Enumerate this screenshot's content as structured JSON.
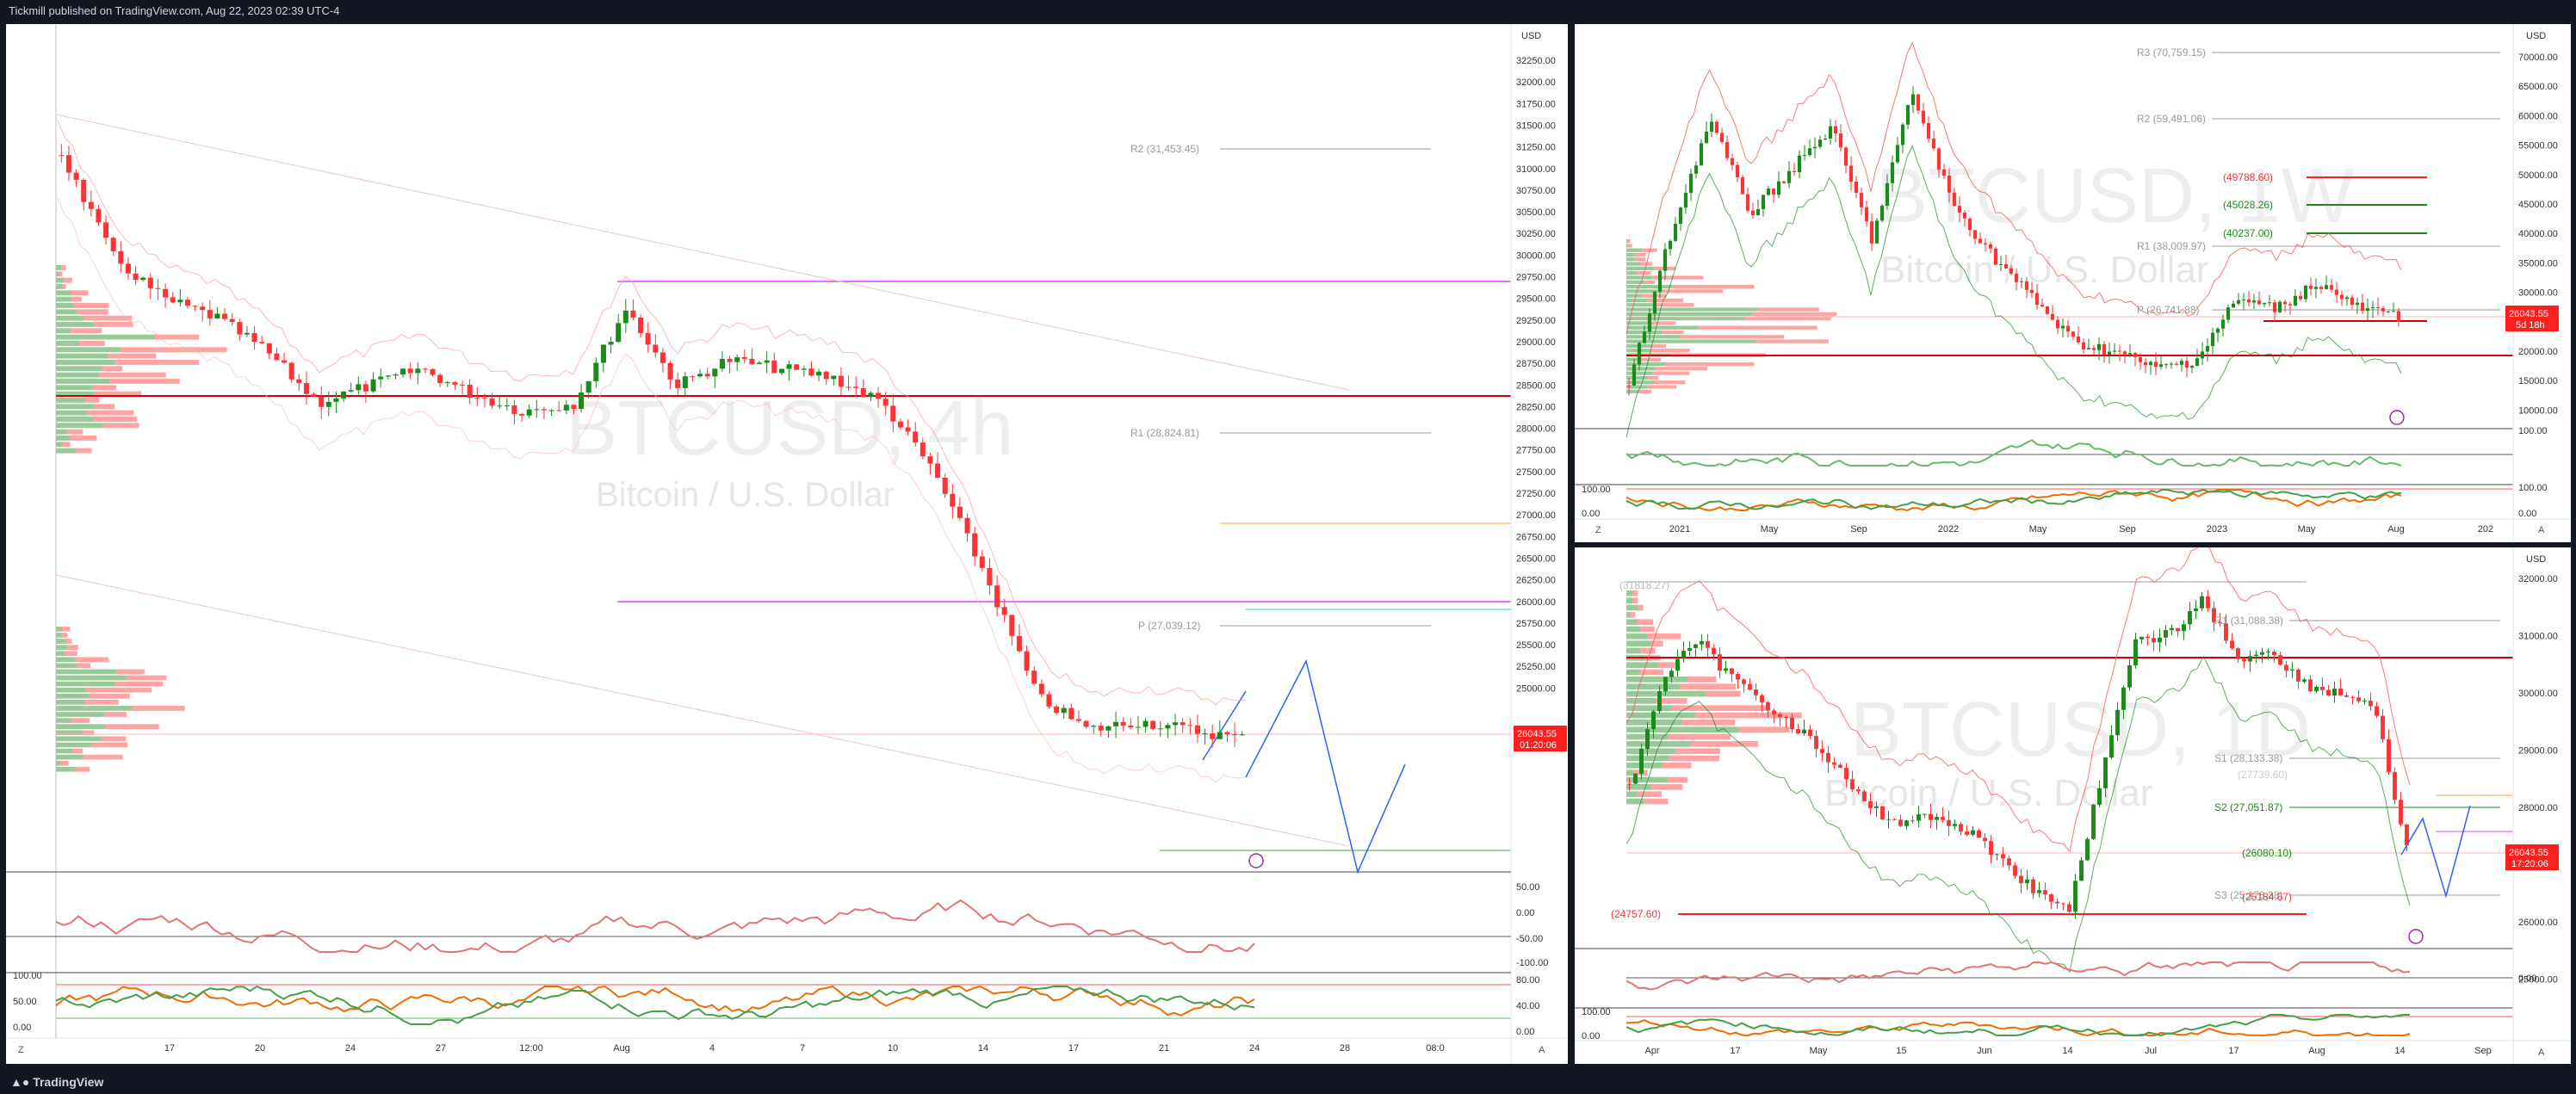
{
  "header": {
    "publisher_text": "Tickmill published on TradingView.com, Aug 22, 2023 02:39 UTC-4"
  },
  "footer": {
    "brand": "TradingView",
    "brand_icon": "tradingview-logo-icon"
  },
  "colors": {
    "up": "#1a8a1a",
    "down": "#ff3333",
    "price_tag": "#ff1f1f",
    "magenta": "#e040fb",
    "blue": "#2962ff"
  },
  "panels": {
    "left": {
      "watermark_symbol": "BTCUSD, 4h",
      "watermark_desc": "Bitcoin / U.S. Dollar",
      "currency": "USD",
      "price_tag": "26043.55",
      "countdown": "01:20:06",
      "price_axis": [
        "32250.00",
        "32000.00",
        "31750.00",
        "31500.00",
        "31250.00",
        "31000.00",
        "30750.00",
        "30500.00",
        "30250.00",
        "30000.00",
        "29750.00",
        "29500.00",
        "29250.00",
        "29000.00",
        "28750.00",
        "28500.00",
        "28250.00",
        "28000.00",
        "27750.00",
        "27500.00",
        "27250.00",
        "27000.00",
        "26750.00",
        "26500.00",
        "26250.00",
        "26000.00",
        "25750.00",
        "25500.00",
        "25250.00",
        "25000.00"
      ],
      "rsi_axis": [
        "50.00",
        "0.00",
        "-50.00",
        "-100.00"
      ],
      "stoch_axis": [
        "80.00",
        "40.00",
        "0.00"
      ],
      "stoch_left": [
        "100.00",
        "50.00",
        "0.00"
      ],
      "time_axis": [
        "17",
        "20",
        "24",
        "27",
        "12:00",
        "Aug",
        "4",
        "7",
        "10",
        "14",
        "17",
        "21",
        "24",
        "28",
        "08:0"
      ],
      "levels": {
        "r2": "R2 (31,453.45)",
        "r1": "R1 (28,824.81)",
        "p": "P (27,039.12)"
      },
      "z_button": "Z",
      "a_button": "A",
      "lightning_icon": "lightning-icon"
    },
    "weekly": {
      "watermark_symbol": "BTCUSD, 1W",
      "watermark_desc": "Bitcoin / U.S. Dollar",
      "currency": "USD",
      "price_tag": "26043.55",
      "countdown": "5d 18h",
      "price_axis": [
        "70000.00",
        "65000.00",
        "60000.00",
        "55000.00",
        "50000.00",
        "45000.00",
        "40000.00",
        "35000.00",
        "30000.00",
        "25000.00",
        "20000.00",
        "15000.00",
        "10000.00"
      ],
      "osc_axis": [
        "100.00",
        "100.00",
        "0.00"
      ],
      "osc_left": [
        "100.00",
        "0.00"
      ],
      "time_axis": [
        "2021",
        "May",
        "Sep",
        "2022",
        "May",
        "Sep",
        "2023",
        "May",
        "Aug",
        "202"
      ],
      "levels": {
        "r3": "R3 (70,759.15)",
        "r2": "R2 (59,491.06)",
        "l1": "(49788.60)",
        "l2": "(45028.26)",
        "l3": "(40237.00)",
        "r1": "R1 (38,009.97)",
        "p": "P (26,741.88)"
      },
      "z_button": "Z",
      "a_button": "A",
      "lightning_icon": "lightning-icon"
    },
    "daily": {
      "watermark_symbol": "BTCUSD, 1D",
      "watermark_desc": "Bitcoin / U.S. Dollar",
      "currency": "USD",
      "price_tag": "26043.55",
      "countdown": "17:20:06",
      "price_axis": [
        "32000.00",
        "31000.00",
        "30000.00",
        "29000.00",
        "28000.00",
        "27000.00",
        "26000.00",
        "25000.00"
      ],
      "osc_axis": [
        "0.00"
      ],
      "osc_left": [
        "100.00",
        "0.00"
      ],
      "time_axis": [
        "Apr",
        "17",
        "May",
        "15",
        "Jun",
        "14",
        "Jul",
        "17",
        "Aug",
        "14",
        "Sep"
      ],
      "levels": {
        "top": "(31818.27)",
        "r1": "R1 (31,088.38)",
        "s1": "S1 (28,133.38)",
        "s2": "S2 (27,051.87)",
        "mid": "(26080.10)",
        "s3": "S3 (25,178.38)",
        "low": "(24757.60)",
        "v1": "(27739.60)",
        "v2": "(25184.67)"
      },
      "z_button": "Z",
      "a_button": "A",
      "lightning_icon": "lightning-icon"
    }
  }
}
